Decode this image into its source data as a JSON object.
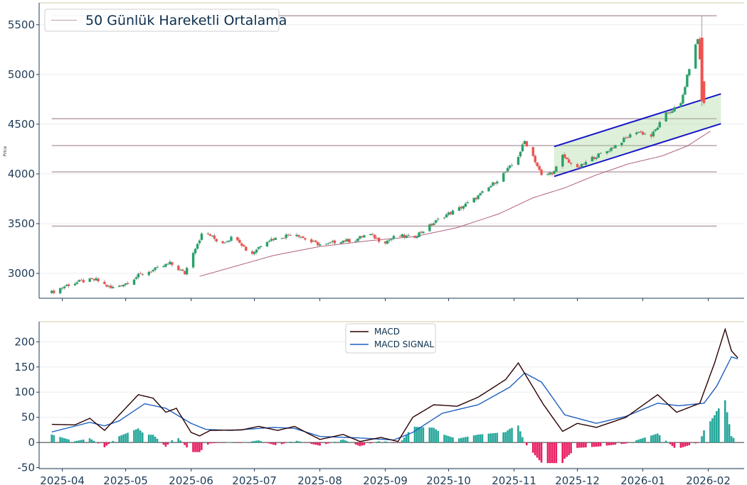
{
  "chart_data": [
    {
      "type": "candlestick",
      "ylabel": "Price",
      "ylim": [
        2750,
        5720
      ],
      "yticks": [
        3000,
        3500,
        4000,
        4500,
        5000,
        5500
      ],
      "x_range": [
        "2025-03-21",
        "2026-02-18"
      ],
      "x_start": "2025-03-27",
      "legend": {
        "label": "50 Günlük Hareketli Ortalama",
        "placement": "top-left"
      },
      "colors": {
        "up": "#26a269",
        "down": "#ef5350",
        "ma": "#b06080",
        "hline": "#c4b0b8",
        "channel": "#1515c8",
        "channel_fill": "#a8d89c"
      },
      "horizontal_levels": [
        5590,
        4555,
        4285,
        4020,
        3475
      ],
      "channel": {
        "start": "2025-11-20",
        "end": "2026-02-07",
        "upper": [
          4275,
          4805
        ],
        "lower": [
          3975,
          4505
        ]
      },
      "close_waypoints": [
        [
          "2025-03-27",
          2810
        ],
        [
          "2025-04-03",
          2880
        ],
        [
          "2025-04-10",
          2920
        ],
        [
          "2025-04-17",
          2935
        ],
        [
          "2025-04-24",
          2850
        ],
        [
          "2025-05-01",
          2900
        ],
        [
          "2025-05-08",
          2990
        ],
        [
          "2025-05-15",
          3040
        ],
        [
          "2025-05-22",
          3100
        ],
        [
          "2025-05-29",
          3000
        ],
        [
          "2025-06-02",
          3220
        ],
        [
          "2025-06-07",
          3430
        ],
        [
          "2025-06-15",
          3300
        ],
        [
          "2025-06-22",
          3380
        ],
        [
          "2025-06-29",
          3180
        ],
        [
          "2025-07-06",
          3330
        ],
        [
          "2025-07-13",
          3360
        ],
        [
          "2025-07-20",
          3410
        ],
        [
          "2025-07-27",
          3320
        ],
        [
          "2025-08-03",
          3280
        ],
        [
          "2025-08-10",
          3330
        ],
        [
          "2025-08-17",
          3330
        ],
        [
          "2025-08-24",
          3400
        ],
        [
          "2025-08-31",
          3310
        ],
        [
          "2025-09-07",
          3380
        ],
        [
          "2025-09-14",
          3360
        ],
        [
          "2025-09-21",
          3460
        ],
        [
          "2025-09-28",
          3570
        ],
        [
          "2025-10-05",
          3640
        ],
        [
          "2025-10-12",
          3730
        ],
        [
          "2025-10-19",
          3840
        ],
        [
          "2025-10-26",
          3980
        ],
        [
          "2025-11-02",
          4130
        ],
        [
          "2025-11-06",
          4330
        ],
        [
          "2025-11-10",
          4180
        ],
        [
          "2025-11-14",
          3980
        ],
        [
          "2025-11-20",
          4020
        ],
        [
          "2025-11-24",
          4180
        ],
        [
          "2025-12-01",
          4050
        ],
        [
          "2025-12-08",
          4160
        ],
        [
          "2025-12-15",
          4230
        ],
        [
          "2025-12-22",
          4330
        ],
        [
          "2025-12-29",
          4430
        ],
        [
          "2026-01-05",
          4380
        ],
        [
          "2026-01-12",
          4600
        ],
        [
          "2026-01-19",
          4700
        ],
        [
          "2026-01-23",
          5070
        ],
        [
          "2026-01-27",
          5360
        ],
        [
          "2026-01-30",
          4720
        ]
      ],
      "ma_waypoints": [
        [
          "2025-06-05",
          2970
        ],
        [
          "2025-06-20",
          3060
        ],
        [
          "2025-07-10",
          3180
        ],
        [
          "2025-08-01",
          3270
        ],
        [
          "2025-08-25",
          3330
        ],
        [
          "2025-09-15",
          3370
        ],
        [
          "2025-10-05",
          3460
        ],
        [
          "2025-10-25",
          3600
        ],
        [
          "2025-11-10",
          3760
        ],
        [
          "2025-11-25",
          3860
        ],
        [
          "2025-12-10",
          3990
        ],
        [
          "2025-12-25",
          4100
        ],
        [
          "2026-01-10",
          4180
        ],
        [
          "2026-01-22",
          4280
        ],
        [
          "2026-02-02",
          4430
        ]
      ]
    },
    {
      "type": "line+bar",
      "ylim": [
        -52,
        240
      ],
      "yticks": [
        -50,
        0,
        50,
        100,
        150,
        200
      ],
      "x_range": [
        "2025-03-21",
        "2026-02-18"
      ],
      "xticks": [
        "2025-04",
        "2025-05",
        "2025-06",
        "2025-07",
        "2025-08",
        "2025-09",
        "2025-10",
        "2025-11",
        "2025-12",
        "2026-01",
        "2026-02"
      ],
      "legend_placement": "top-center",
      "series": [
        {
          "name": "MACD",
          "color": "#2b0000",
          "waypoints": [
            [
              "2025-03-27",
              36
            ],
            [
              "2025-04-07",
              35
            ],
            [
              "2025-04-14",
              48
            ],
            [
              "2025-04-21",
              24
            ],
            [
              "2025-04-28",
              55
            ],
            [
              "2025-05-07",
              95
            ],
            [
              "2025-05-14",
              88
            ],
            [
              "2025-05-20",
              60
            ],
            [
              "2025-05-25",
              68
            ],
            [
              "2025-06-01",
              20
            ],
            [
              "2025-06-05",
              13
            ],
            [
              "2025-06-10",
              24
            ],
            [
              "2025-06-25",
              25
            ],
            [
              "2025-07-03",
              32
            ],
            [
              "2025-07-12",
              24
            ],
            [
              "2025-07-20",
              32
            ],
            [
              "2025-08-01",
              6
            ],
            [
              "2025-08-12",
              16
            ],
            [
              "2025-08-20",
              2
            ],
            [
              "2025-08-30",
              10
            ],
            [
              "2025-09-07",
              2
            ],
            [
              "2025-09-14",
              50
            ],
            [
              "2025-09-24",
              75
            ],
            [
              "2025-10-05",
              72
            ],
            [
              "2025-10-15",
              90
            ],
            [
              "2025-10-28",
              125
            ],
            [
              "2025-11-03",
              158
            ],
            [
              "2025-11-15",
              75
            ],
            [
              "2025-11-24",
              22
            ],
            [
              "2025-12-01",
              38
            ],
            [
              "2025-12-10",
              30
            ],
            [
              "2025-12-24",
              50
            ],
            [
              "2026-01-08",
              95
            ],
            [
              "2026-01-17",
              60
            ],
            [
              "2026-01-28",
              78
            ],
            [
              "2026-02-04",
              158
            ],
            [
              "2026-02-09",
              225
            ],
            [
              "2026-02-12",
              182
            ],
            [
              "2026-02-15",
              168
            ]
          ]
        },
        {
          "name": "MACD SIGNAL",
          "color": "#1f5fbf",
          "waypoints": [
            [
              "2025-03-27",
              21
            ],
            [
              "2025-04-14",
              40
            ],
            [
              "2025-04-21",
              33
            ],
            [
              "2025-04-28",
              43
            ],
            [
              "2025-05-10",
              77
            ],
            [
              "2025-05-20",
              68
            ],
            [
              "2025-06-01",
              38
            ],
            [
              "2025-06-08",
              26
            ],
            [
              "2025-06-20",
              24
            ],
            [
              "2025-07-10",
              30
            ],
            [
              "2025-07-20",
              28
            ],
            [
              "2025-08-01",
              12
            ],
            [
              "2025-08-20",
              9
            ],
            [
              "2025-09-05",
              5
            ],
            [
              "2025-09-14",
              20
            ],
            [
              "2025-09-28",
              58
            ],
            [
              "2025-10-15",
              75
            ],
            [
              "2025-10-30",
              110
            ],
            [
              "2025-11-06",
              138
            ],
            [
              "2025-11-14",
              120
            ],
            [
              "2025-11-25",
              55
            ],
            [
              "2025-12-10",
              38
            ],
            [
              "2025-12-24",
              52
            ],
            [
              "2026-01-08",
              78
            ],
            [
              "2026-01-18",
              73
            ],
            [
              "2026-01-30",
              78
            ],
            [
              "2026-02-05",
              112
            ],
            [
              "2026-02-12",
              170
            ],
            [
              "2026-02-15",
              166
            ]
          ]
        }
      ],
      "histogram_colors": {
        "positive": "#26a69a",
        "negative": "#e91e63"
      }
    }
  ]
}
